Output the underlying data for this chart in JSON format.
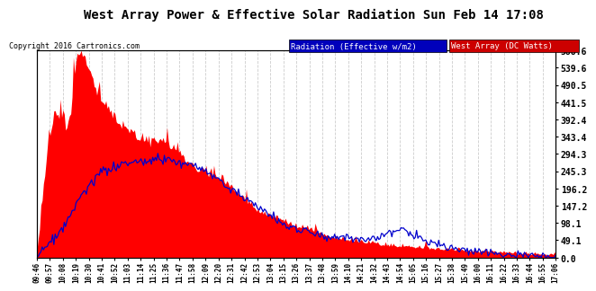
{
  "title": "West Array Power & Effective Solar Radiation Sun Feb 14 17:08",
  "copyright": "Copyright 2016 Cartronics.com",
  "legend_radiation": "Radiation (Effective w/m2)",
  "legend_west": "West Array (DC Watts)",
  "legend_radiation_bg": "#0000bb",
  "legend_west_bg": "#cc0000",
  "yticks": [
    0.0,
    49.1,
    98.1,
    147.2,
    196.2,
    245.3,
    294.3,
    343.4,
    392.4,
    441.5,
    490.5,
    539.6,
    588.6
  ],
  "ymax": 588.6,
  "plot_bg_color": "#ffffff",
  "grid_color": "#aaaaaa",
  "red_color": "#ff0000",
  "blue_color": "#0000cc",
  "x_labels": [
    "09:46",
    "09:57",
    "10:08",
    "10:19",
    "10:30",
    "10:41",
    "10:52",
    "11:03",
    "11:14",
    "11:25",
    "11:36",
    "11:47",
    "11:58",
    "12:09",
    "12:20",
    "12:31",
    "12:42",
    "12:53",
    "13:04",
    "13:15",
    "13:26",
    "13:37",
    "13:48",
    "13:59",
    "14:10",
    "14:21",
    "14:32",
    "14:43",
    "14:54",
    "15:05",
    "15:16",
    "15:27",
    "15:38",
    "15:49",
    "16:00",
    "16:11",
    "16:22",
    "16:33",
    "16:44",
    "16:55",
    "17:06"
  ]
}
